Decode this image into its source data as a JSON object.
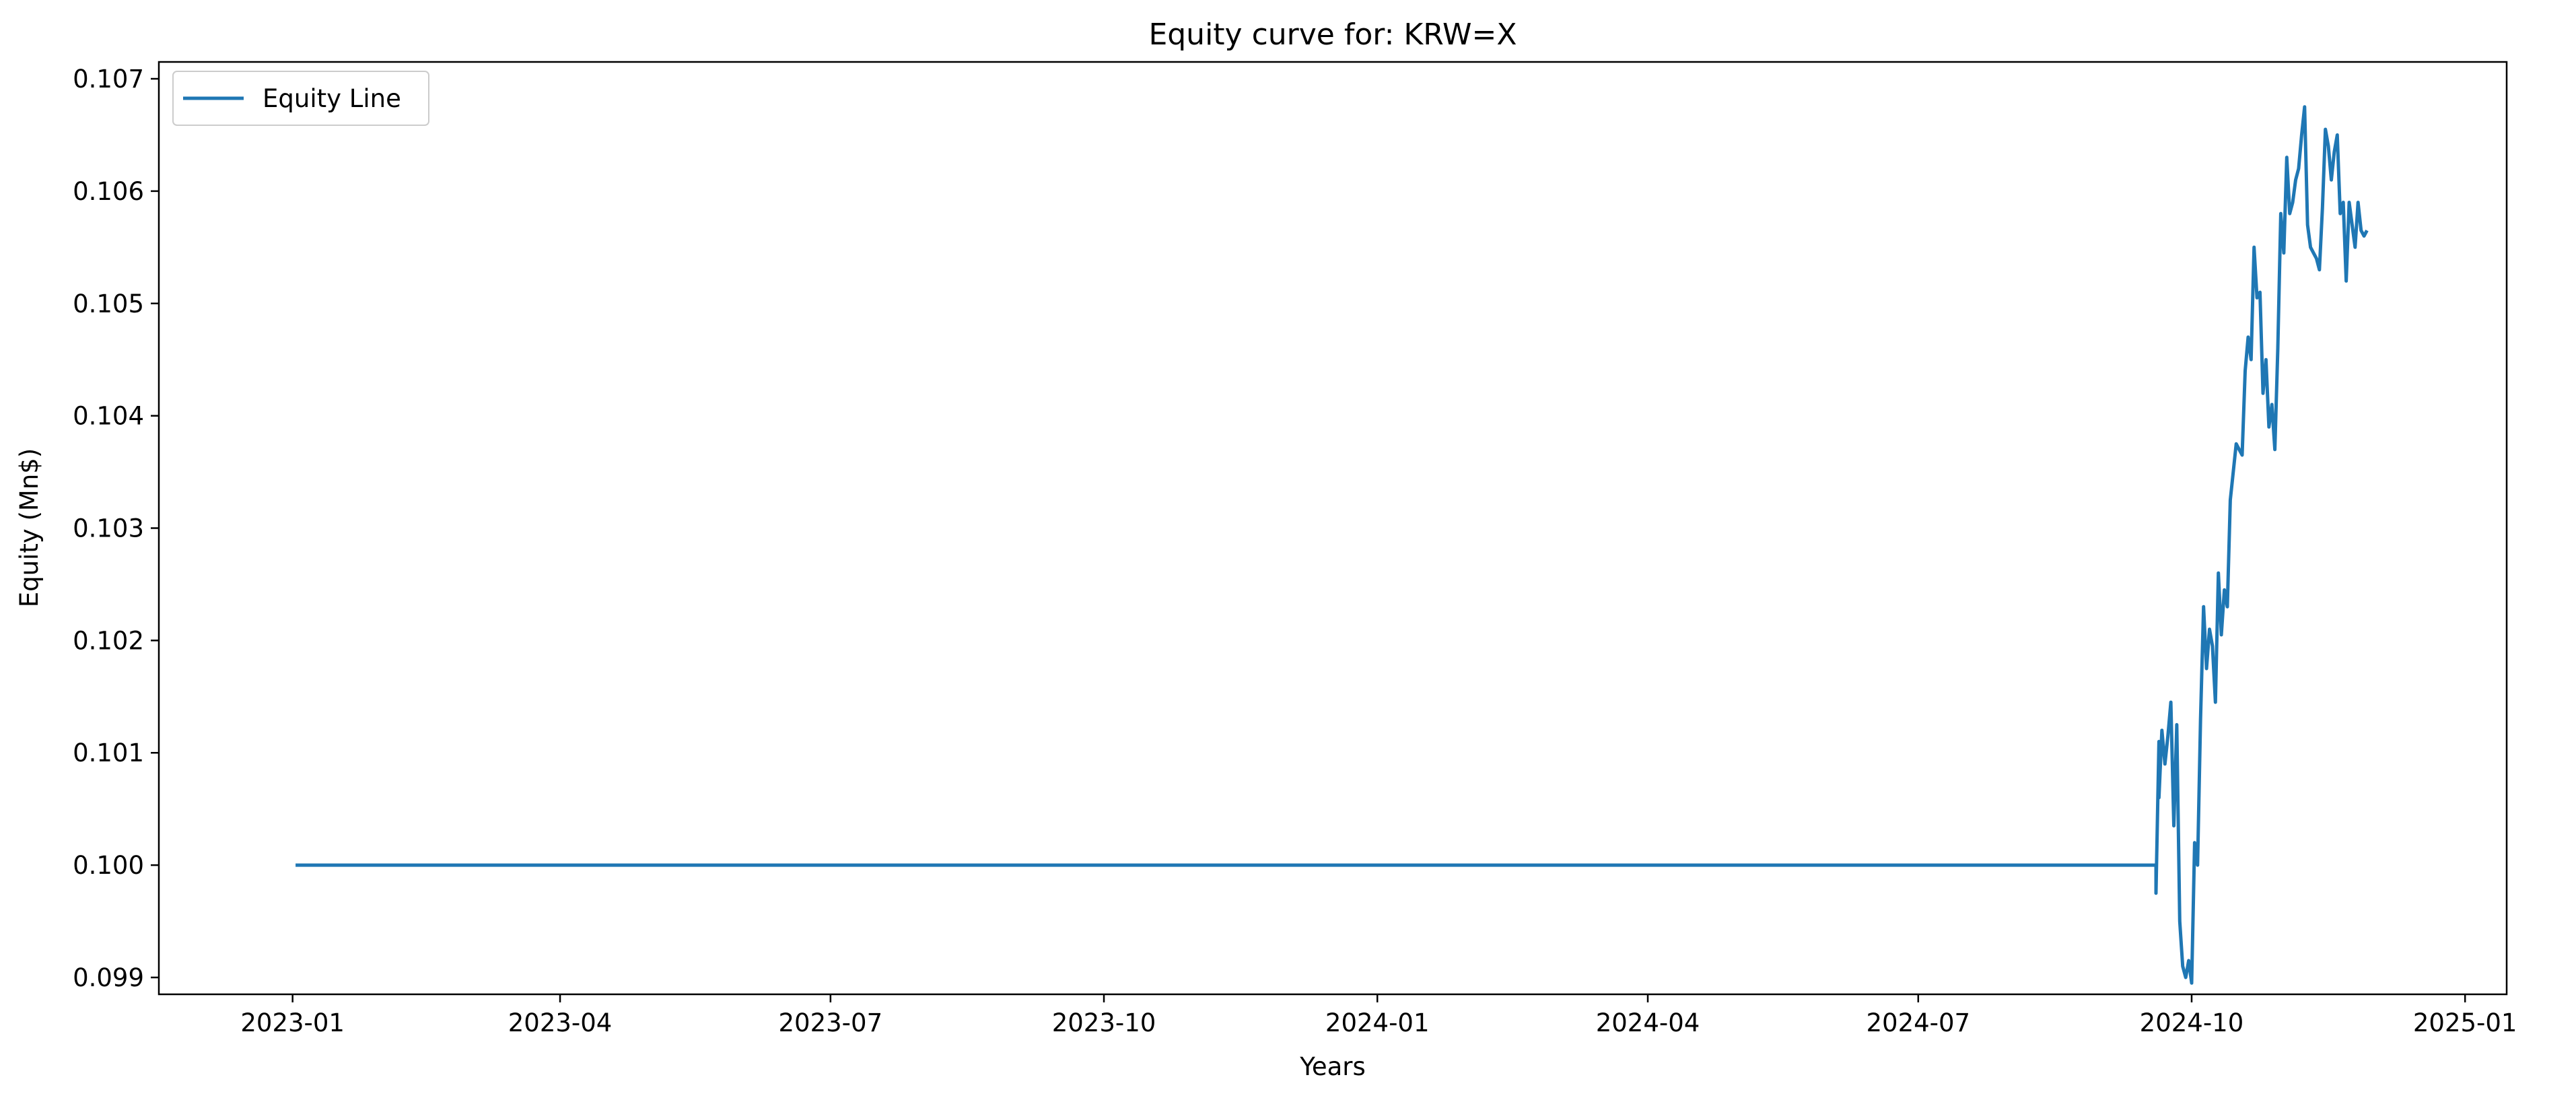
{
  "chart_data": {
    "type": "line",
    "title": "Equity curve for: KRW=X",
    "xlabel": "Years",
    "ylabel": "Equity (Mn$)",
    "x_axis_type": "date",
    "xlim": [
      "2022-11-17",
      "2025-01-15"
    ],
    "ylim": [
      0.09885,
      0.10715
    ],
    "x_ticks": [
      {
        "date": "2023-01-01",
        "label": "2023-01"
      },
      {
        "date": "2023-04-01",
        "label": "2023-04"
      },
      {
        "date": "2023-07-01",
        "label": "2023-07"
      },
      {
        "date": "2023-10-01",
        "label": "2023-10"
      },
      {
        "date": "2024-01-01",
        "label": "2024-01"
      },
      {
        "date": "2024-04-01",
        "label": "2024-04"
      },
      {
        "date": "2024-07-01",
        "label": "2024-07"
      },
      {
        "date": "2024-10-01",
        "label": "2024-10"
      },
      {
        "date": "2025-01-01",
        "label": "2025-01"
      }
    ],
    "y_ticks": [
      {
        "value": 0.099,
        "label": "0.099"
      },
      {
        "value": 0.1,
        "label": "0.100"
      },
      {
        "value": 0.101,
        "label": "0.101"
      },
      {
        "value": 0.102,
        "label": "0.102"
      },
      {
        "value": 0.103,
        "label": "0.103"
      },
      {
        "value": 0.104,
        "label": "0.104"
      },
      {
        "value": 0.105,
        "label": "0.105"
      },
      {
        "value": 0.106,
        "label": "0.106"
      },
      {
        "value": 0.107,
        "label": "0.107"
      }
    ],
    "grid": false,
    "legend_position": "top-left",
    "series": [
      {
        "name": "Equity Line",
        "color": "#1f77b4",
        "x": [
          "2023-01-02",
          "2024-09-19",
          "2024-09-19",
          "2024-09-20",
          "2024-09-20",
          "2024-09-21",
          "2024-09-22",
          "2024-09-23",
          "2024-09-24",
          "2024-09-25",
          "2024-09-26",
          "2024-09-27",
          "2024-09-28",
          "2024-09-29",
          "2024-09-30",
          "2024-10-01",
          "2024-10-02",
          "2024-10-03",
          "2024-10-04",
          "2024-10-05",
          "2024-10-06",
          "2024-10-07",
          "2024-10-08",
          "2024-10-09",
          "2024-10-10",
          "2024-10-11",
          "2024-10-12",
          "2024-10-13",
          "2024-10-14",
          "2024-10-15",
          "2024-10-16",
          "2024-10-17",
          "2024-10-18",
          "2024-10-19",
          "2024-10-20",
          "2024-10-21",
          "2024-10-22",
          "2024-10-23",
          "2024-10-24",
          "2024-10-25",
          "2024-10-26",
          "2024-10-27",
          "2024-10-28",
          "2024-10-29",
          "2024-10-30",
          "2024-10-31",
          "2024-11-01",
          "2024-11-02",
          "2024-11-03",
          "2024-11-04",
          "2024-11-05",
          "2024-11-06",
          "2024-11-07",
          "2024-11-08",
          "2024-11-09",
          "2024-11-10",
          "2024-11-11",
          "2024-11-12",
          "2024-11-13",
          "2024-11-14",
          "2024-11-15",
          "2024-11-16",
          "2024-11-17",
          "2024-11-18",
          "2024-11-19",
          "2024-11-20",
          "2024-11-21",
          "2024-11-22",
          "2024-11-23",
          "2024-11-24",
          "2024-11-25",
          "2024-11-26",
          "2024-11-27",
          "2024-11-28",
          "2024-11-29"
        ],
        "y": [
          0.1,
          0.1,
          0.09975,
          0.1011,
          0.1006,
          0.1012,
          0.1009,
          0.10115,
          0.10145,
          0.10035,
          0.10125,
          0.0995,
          0.0991,
          0.099,
          0.09915,
          0.09895,
          0.1002,
          0.1,
          0.1013,
          0.1023,
          0.10175,
          0.1021,
          0.10195,
          0.10145,
          0.1026,
          0.10205,
          0.10245,
          0.1023,
          0.10325,
          0.1035,
          0.10375,
          0.1037,
          0.10365,
          0.1044,
          0.1047,
          0.1045,
          0.1055,
          0.10505,
          0.1051,
          0.1042,
          0.1045,
          0.1039,
          0.1041,
          0.1037,
          0.1046,
          0.1058,
          0.10545,
          0.1063,
          0.1058,
          0.1059,
          0.1061,
          0.1062,
          0.1065,
          0.10675,
          0.1057,
          0.1055,
          0.10545,
          0.1054,
          0.1053,
          0.10585,
          0.10655,
          0.1064,
          0.1061,
          0.10635,
          0.1065,
          0.1058,
          0.1059,
          0.1052,
          0.1059,
          0.1057,
          0.1055,
          0.1059,
          0.10565,
          0.1056,
          0.10565
        ]
      }
    ]
  }
}
